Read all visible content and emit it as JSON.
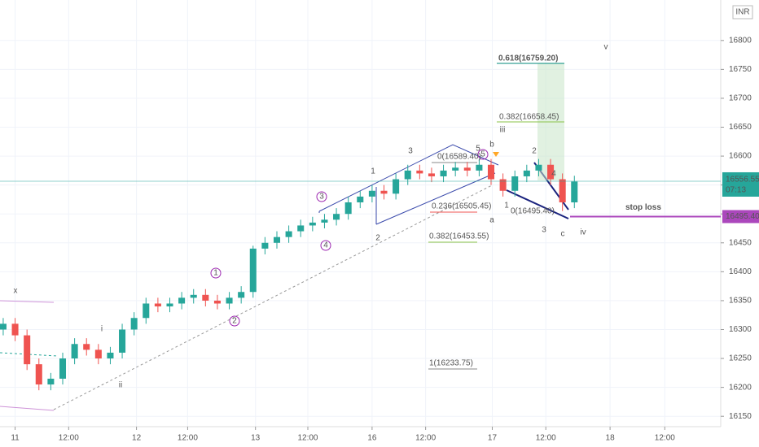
{
  "chart_data": {
    "type": "candlestick",
    "currency": "INR",
    "xlim": [
      -0.27,
      60.3
    ],
    "ylim": [
      16132,
      16870
    ],
    "xticks": [
      {
        "value": 1.0,
        "label": "11"
      },
      {
        "value": 5.5,
        "label": "12:00"
      },
      {
        "value": 11.2,
        "label": "12"
      },
      {
        "value": 15.5,
        "label": "12:00"
      },
      {
        "value": 21.2,
        "label": "13"
      },
      {
        "value": 25.6,
        "label": "12:00"
      },
      {
        "value": 31.0,
        "label": "16"
      },
      {
        "value": 35.5,
        "label": "12:00"
      },
      {
        "value": 41.1,
        "label": "17"
      },
      {
        "value": 45.6,
        "label": "12:00"
      },
      {
        "value": 51.0,
        "label": "18"
      },
      {
        "value": 55.6,
        "label": "12:00"
      }
    ],
    "yticks": [
      16150,
      16200,
      16250,
      16300,
      16350,
      16400,
      16450,
      16500,
      16550,
      16600,
      16650,
      16700,
      16750,
      16800
    ],
    "grid": true,
    "up_color": "#26a69a",
    "down_color": "#ef5350",
    "open": [
      16300,
      16310,
      16290,
      16240,
      16205,
      16215,
      16250,
      16275,
      16265,
      16250,
      16260,
      16300,
      16320,
      16345,
      16340,
      16345,
      16355,
      16360,
      16350,
      16345,
      16355,
      16365,
      16440,
      16450,
      16460,
      16470,
      16480,
      16485,
      16490,
      16500,
      16520,
      16530,
      16540,
      16535,
      16560,
      16575,
      16570,
      16565,
      16575,
      16580,
      16575,
      16585,
      16560,
      16540,
      16565,
      16575,
      16585,
      16560,
      16520
    ],
    "high": [
      16320,
      16320,
      16300,
      16250,
      16225,
      16260,
      16285,
      16285,
      16275,
      16270,
      16310,
      16330,
      16355,
      16355,
      16355,
      16365,
      16370,
      16370,
      16360,
      16365,
      16375,
      16445,
      16460,
      16470,
      16480,
      16490,
      16495,
      16500,
      16510,
      16530,
      16540,
      16550,
      16550,
      16570,
      16585,
      16585,
      16580,
      16585,
      16590,
      16590,
      16595,
      16595,
      16570,
      16575,
      16585,
      16595,
      16595,
      16570,
      16566
    ],
    "low": [
      16290,
      16280,
      16230,
      16195,
      16195,
      16205,
      16240,
      16255,
      16240,
      16240,
      16250,
      16290,
      16310,
      16330,
      16330,
      16335,
      16345,
      16340,
      16335,
      16335,
      16345,
      16355,
      16430,
      16440,
      16450,
      16460,
      16470,
      16475,
      16480,
      16490,
      16510,
      16520,
      16525,
      16525,
      16550,
      16560,
      16555,
      16555,
      16565,
      16565,
      16565,
      16550,
      16530,
      16530,
      16555,
      16565,
      16550,
      16505,
      16510
    ],
    "close": [
      16310,
      16290,
      16240,
      16205,
      16215,
      16250,
      16275,
      16265,
      16250,
      16260,
      16300,
      16320,
      16345,
      16340,
      16345,
      16355,
      16360,
      16350,
      16345,
      16355,
      16365,
      16440,
      16450,
      16460,
      16470,
      16480,
      16485,
      16490,
      16500,
      16520,
      16530,
      16540,
      16535,
      16560,
      16575,
      16570,
      16565,
      16575,
      16580,
      16575,
      16585,
      16560,
      16540,
      16565,
      16575,
      16585,
      16560,
      16520,
      16556
    ],
    "last_price": 16556.55,
    "countdown": "07:13",
    "stop_loss": {
      "value": 16495.4,
      "label": "16495.40",
      "text": "stop loss"
    },
    "annotations": [
      "x",
      "i",
      "ii",
      "iii",
      "iv",
      "v",
      "a",
      "b",
      "c",
      "1",
      "2",
      "3",
      "4",
      "5",
      "1",
      "2",
      "3",
      "5",
      "2",
      "4",
      "1",
      "3",
      "0.618(16759.20)",
      "0.382(16658.45)",
      "0(16589.40)",
      "0.236(16505.45)",
      "0.382(16453.55)",
      "1(16233.75)",
      "0(16495.40)"
    ]
  }
}
